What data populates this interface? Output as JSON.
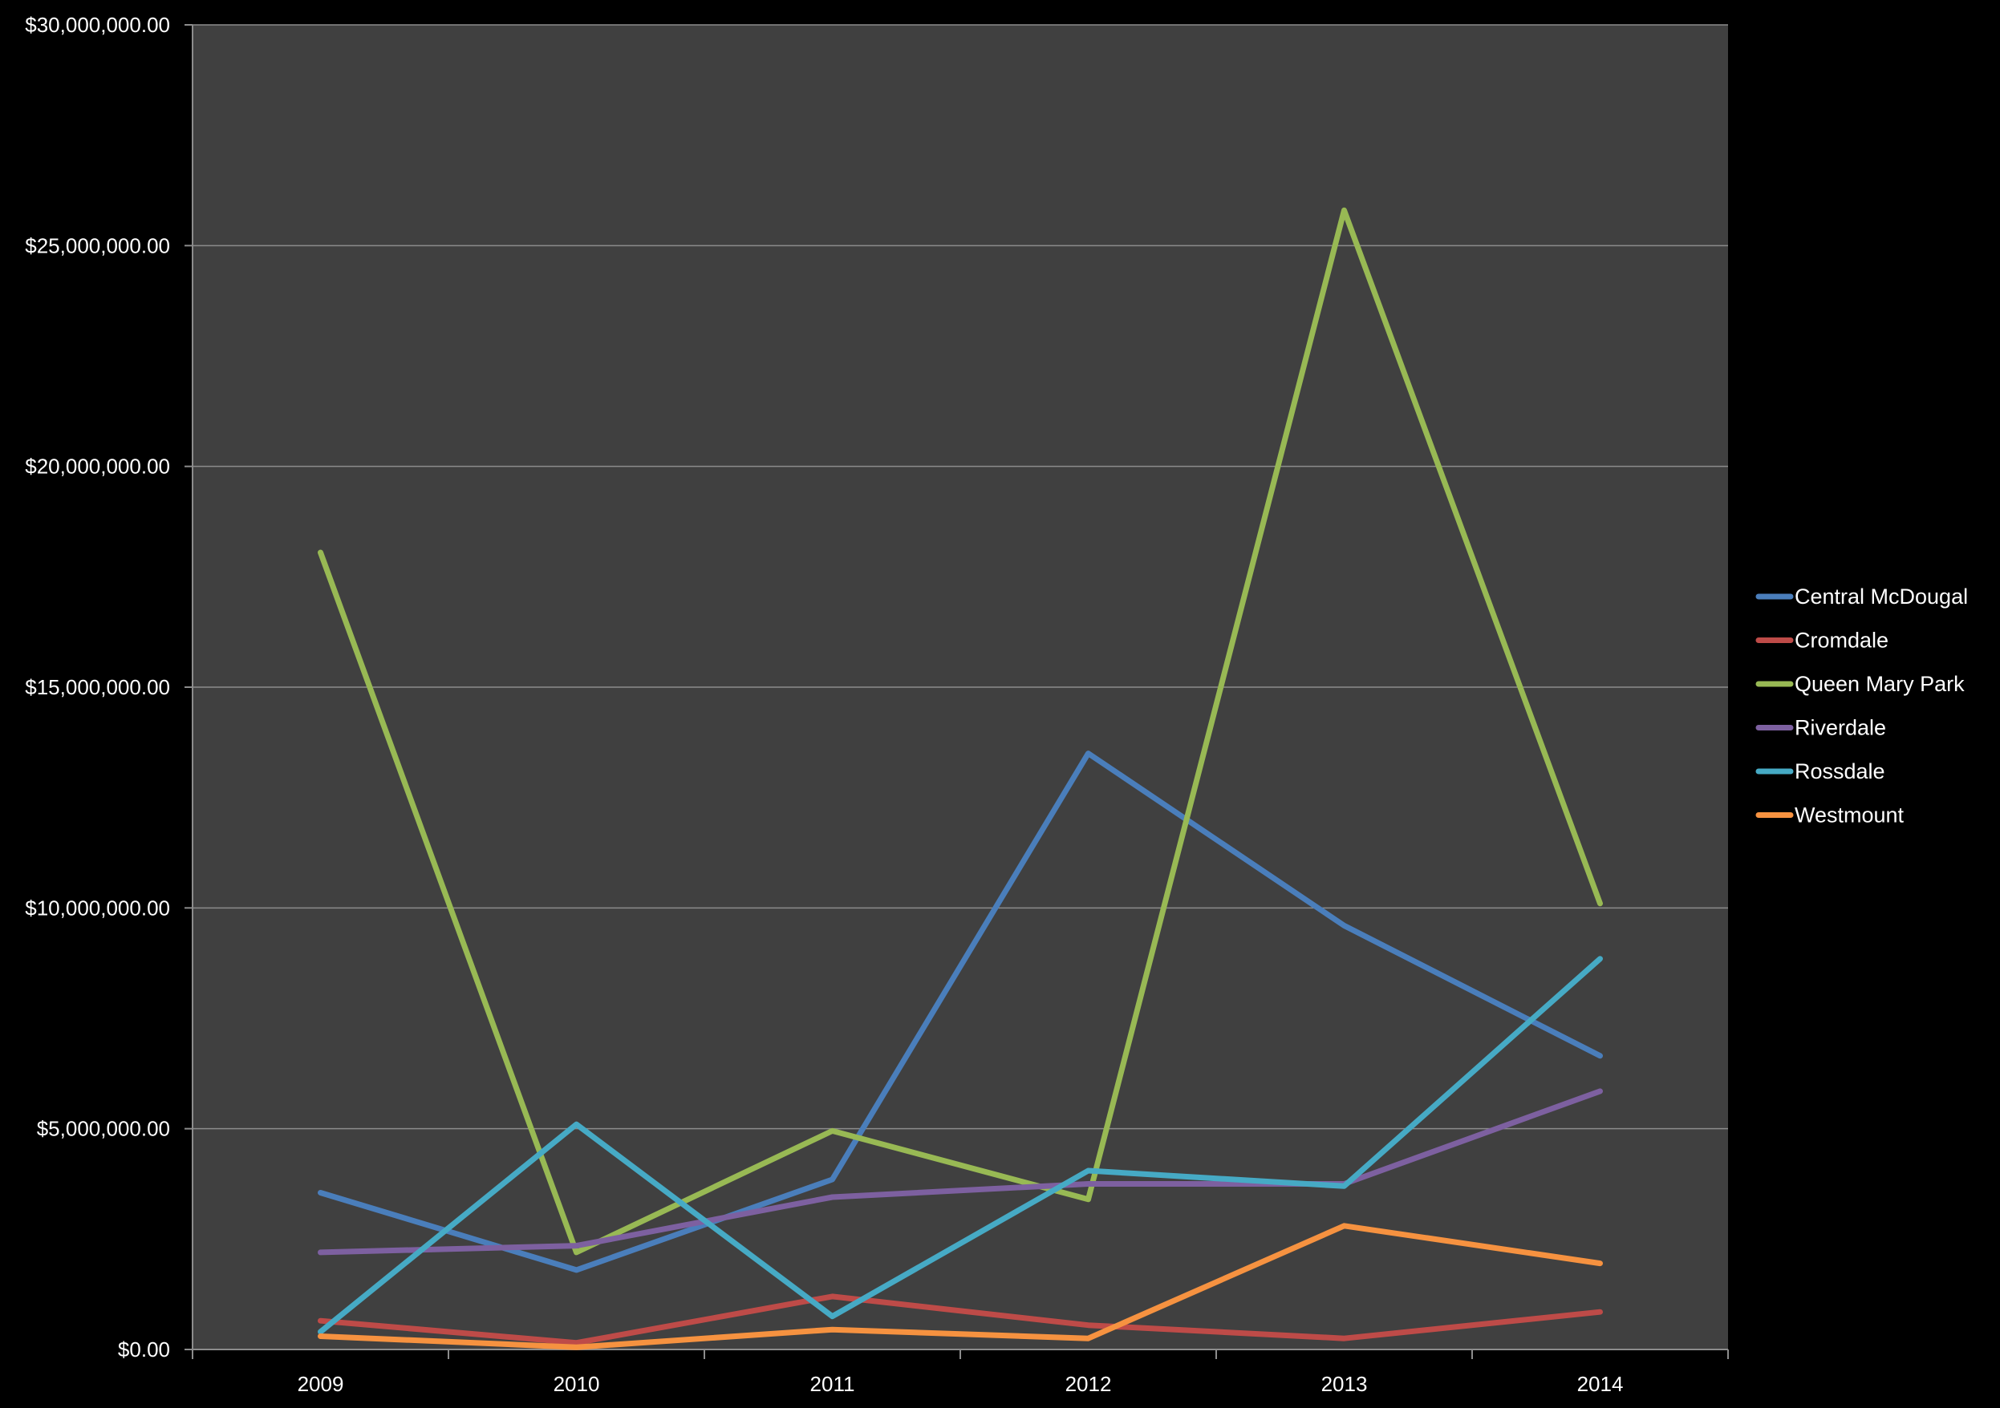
{
  "chart_data": {
    "type": "line",
    "title": "",
    "xlabel": "",
    "ylabel": "",
    "categories": [
      "2009",
      "2010",
      "2011",
      "2012",
      "2013",
      "2014"
    ],
    "ylim": [
      0,
      30000000
    ],
    "yticks": [
      0,
      5000000,
      10000000,
      15000000,
      20000000,
      25000000,
      30000000
    ],
    "ytick_labels": [
      "$0.00",
      "$5,000,000.00",
      "$10,000,000.00",
      "$15,000,000.00",
      "$20,000,000.00",
      "$25,000,000.00",
      "$30,000,000.00"
    ],
    "grid": true,
    "legend_position": "right",
    "background": "#404040",
    "page_background": "#000000",
    "series": [
      {
        "name": "Central McDougal",
        "color": "#4a7ebb",
        "values": [
          3550000,
          1800000,
          3850000,
          13500000,
          9600000,
          6650000
        ]
      },
      {
        "name": "Cromdale",
        "color": "#be4b48",
        "values": [
          650000,
          150000,
          1200000,
          550000,
          250000,
          850000
        ]
      },
      {
        "name": "Queen Mary Park",
        "color": "#98b954",
        "values": [
          18050000,
          2200000,
          4950000,
          3400000,
          25800000,
          10100000
        ]
      },
      {
        "name": "Riverdale",
        "color": "#7d60a0",
        "values": [
          2200000,
          2350000,
          3450000,
          3750000,
          3750000,
          5850000
        ]
      },
      {
        "name": "Rossdale",
        "color": "#46aac5",
        "values": [
          400000,
          5100000,
          750000,
          4050000,
          3700000,
          8850000
        ]
      },
      {
        "name": "Westmount",
        "color": "#f69240",
        "values": [
          300000,
          50000,
          450000,
          250000,
          2800000,
          1950000
        ]
      }
    ]
  }
}
